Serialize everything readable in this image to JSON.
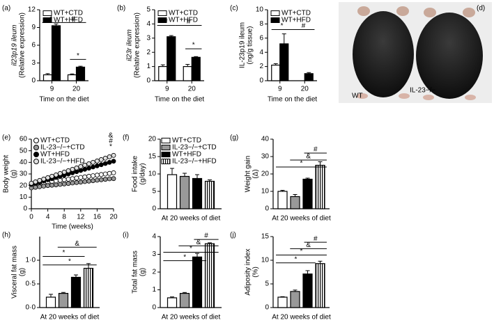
{
  "chart_data": [
    {
      "type": "bar",
      "label": "(a)",
      "ylabel": [
        "il23p19 ileum",
        "(Relative expression)"
      ],
      "xlabel": "Time on the diet",
      "categories": [
        "9",
        "20"
      ],
      "ylim": [
        0,
        12
      ],
      "yticks": [
        0,
        3,
        6,
        9,
        12
      ],
      "series": [
        {
          "name": "WT+CTD",
          "color": "#ffffff",
          "values": [
            1.0,
            1.0
          ],
          "errors": [
            0.2,
            0.15
          ]
        },
        {
          "name": "WT+HFD",
          "color": "#000000",
          "values": [
            9.3,
            2.3
          ],
          "errors": [
            0.3,
            0.15
          ]
        }
      ],
      "annotations": [
        "*",
        "#",
        "*"
      ]
    },
    {
      "type": "bar",
      "label": "(b)",
      "ylabel": [
        "il23r ileum",
        "(Relative expression)"
      ],
      "xlabel": "Time on the diet",
      "categories": [
        "9",
        "20"
      ],
      "ylim": [
        0,
        5
      ],
      "yticks": [
        0,
        1,
        2,
        3,
        4,
        5
      ],
      "series": [
        {
          "name": "WT+CTD",
          "color": "#ffffff",
          "values": [
            1.0,
            1.0
          ],
          "errors": [
            0.12,
            0.15
          ]
        },
        {
          "name": "WT+HFD",
          "color": "#000000",
          "values": [
            3.1,
            1.65
          ],
          "errors": [
            0.08,
            0.05
          ]
        }
      ],
      "annotations": [
        "*",
        "#",
        "*"
      ]
    },
    {
      "type": "bar",
      "label": "(c)",
      "ylabel": [
        "IL-23p19 ileum",
        "(ng/g tissue)"
      ],
      "xlabel": "Time on the diet",
      "categories": [
        "9",
        "20"
      ],
      "ylim": [
        0,
        10
      ],
      "yticks": [
        0,
        2,
        4,
        6,
        8,
        10
      ],
      "series": [
        {
          "name": "WT+CTD",
          "color": "#ffffff",
          "values": [
            2.2,
            null
          ],
          "errors": [
            0.2,
            null
          ]
        },
        {
          "name": "WT+HFD",
          "color": "#000000",
          "values": [
            5.2,
            1.0
          ],
          "errors": [
            1.4,
            0.15
          ]
        }
      ],
      "annotations": [
        "*",
        "#"
      ]
    },
    {
      "type": "image",
      "label": "(d)",
      "texts": [
        "WT",
        "IL-23−/−"
      ]
    },
    {
      "type": "line",
      "label": "(e)",
      "ylabel": [
        "Body weight",
        "(g)"
      ],
      "xlabel": "Time (weeks)",
      "x": [
        0,
        1,
        2,
        3,
        4,
        5,
        6,
        7,
        8,
        9,
        10,
        11,
        12,
        13,
        14,
        15,
        16,
        17,
        18,
        19,
        20
      ],
      "xlim": [
        0,
        20
      ],
      "xticks": [
        0,
        4,
        8,
        12,
        16,
        20
      ],
      "ylim": [
        0,
        60
      ],
      "yticks": [
        0,
        10,
        20,
        30,
        40,
        50,
        60
      ],
      "series": [
        {
          "name": "WT+CTD",
          "color": "#ffffff",
          "values": [
            21,
            21.5,
            22,
            22.5,
            23,
            23.5,
            24,
            24.5,
            25,
            25.5,
            26,
            26.5,
            27,
            27.5,
            28,
            28.5,
            29,
            29.5,
            30,
            30.5,
            31
          ]
        },
        {
          "name": "IL-23−/−+CTD",
          "color": "#999999",
          "values": [
            18,
            18.5,
            19,
            19.5,
            20,
            20.3,
            20.6,
            21,
            21.4,
            21.8,
            22.2,
            22.6,
            23,
            23.4,
            23.8,
            24.2,
            24.6,
            25,
            25.4,
            25.8,
            26
          ]
        },
        {
          "name": "WT+HFD",
          "color": "#000000",
          "values": [
            21,
            22,
            23,
            24,
            25,
            26,
            27,
            28,
            29,
            30,
            31,
            32,
            33,
            34,
            35,
            36,
            37,
            38,
            39,
            40,
            41
          ]
        },
        {
          "name": "IL-23−/−+HFD",
          "color": "#e0e0e0",
          "values": [
            22,
            23.2,
            24.4,
            25.6,
            26.8,
            28,
            29.2,
            30.4,
            31.6,
            32.8,
            34,
            35.2,
            36.4,
            37.6,
            38.8,
            40,
            41.2,
            42.4,
            43.6,
            44.8,
            46
          ]
        }
      ],
      "annotations": [
        "&",
        "#",
        "*"
      ]
    },
    {
      "type": "bar",
      "label": "(f)",
      "ylabel": [
        "Food intake",
        "(g/day)"
      ],
      "categories": [
        "At 20 weeks of diet"
      ],
      "ylim": [
        0,
        20
      ],
      "yticks": [
        0,
        5,
        10,
        15,
        20
      ],
      "legend": true,
      "series": [
        {
          "name": "WT+CTD",
          "color": "#ffffff",
          "values": [
            9.8
          ],
          "errors": [
            1.8
          ]
        },
        {
          "name": "IL-23−/−+CTD",
          "color": "#999999",
          "values": [
            9.3
          ],
          "errors": [
            0.9
          ]
        },
        {
          "name": "WT+HFD",
          "color": "#000000",
          "values": [
            8.7
          ],
          "errors": [
            1.1
          ]
        },
        {
          "name": "IL-23−/−+HFD",
          "color": "stripes",
          "values": [
            7.9
          ],
          "errors": [
            0.4
          ]
        }
      ],
      "annotations": []
    },
    {
      "type": "bar",
      "label": "(g)",
      "ylabel": [
        "Weight gain",
        "(Δ)"
      ],
      "categories": [
        "At 20 weeks of diet"
      ],
      "ylim": [
        0,
        40
      ],
      "yticks": [
        0,
        10,
        20,
        30,
        40
      ],
      "series": [
        {
          "name": "WT+CTD",
          "color": "#ffffff",
          "values": [
            10
          ],
          "errors": [
            0.6
          ]
        },
        {
          "name": "IL-23−/−+CTD",
          "color": "#999999",
          "values": [
            7
          ],
          "errors": [
            1.2
          ]
        },
        {
          "name": "WT+HFD",
          "color": "#000000",
          "values": [
            17
          ],
          "errors": [
            0.6
          ]
        },
        {
          "name": "IL-23−/−+HFD",
          "color": "stripes",
          "values": [
            25
          ],
          "errors": [
            2
          ]
        }
      ],
      "annotations": [
        "#",
        "&",
        "*"
      ]
    },
    {
      "type": "bar",
      "label": "(h)",
      "ylabel": [
        "Visceral fat mass",
        "(g)"
      ],
      "categories": [
        "At 20 weeks of diet"
      ],
      "ylim": [
        0,
        1.5
      ],
      "yticks": [
        {
          "value": 0,
          "label": "0·0"
        },
        {
          "value": 0.5,
          "label": "0·5"
        },
        {
          "value": 1,
          "label": "1·0"
        }
      ],
      "series": [
        {
          "name": "WT+CTD",
          "color": "#ffffff",
          "values": [
            0.22
          ],
          "errors": [
            0.06
          ]
        },
        {
          "name": "IL-23−/−+CTD",
          "color": "#999999",
          "values": [
            0.3
          ],
          "errors": [
            0.02
          ]
        },
        {
          "name": "WT+HFD",
          "color": "#000000",
          "values": [
            0.64
          ],
          "errors": [
            0.05
          ]
        },
        {
          "name": "IL-23−/−+HFD",
          "color": "stripes",
          "values": [
            0.83
          ],
          "errors": [
            0.1
          ]
        }
      ],
      "annotations": [
        "&",
        "*",
        "*"
      ]
    },
    {
      "type": "bar",
      "label": "(i)",
      "ylabel": [
        "Total fat mass",
        "(g)"
      ],
      "categories": [
        "At 20 weeks of diet"
      ],
      "ylim": [
        0,
        4
      ],
      "yticks": [
        0,
        1,
        2,
        3,
        4
      ],
      "series": [
        {
          "name": "WT+CTD",
          "color": "#ffffff",
          "values": [
            0.55
          ],
          "errors": [
            0.05
          ]
        },
        {
          "name": "IL-23−/−+CTD",
          "color": "#999999",
          "values": [
            0.8
          ],
          "errors": [
            0.05
          ]
        },
        {
          "name": "WT+HFD",
          "color": "#000000",
          "values": [
            2.85
          ],
          "errors": [
            0.2
          ]
        },
        {
          "name": "IL-23−/−+HFD",
          "color": "stripes",
          "values": [
            3.6
          ],
          "errors": [
            0.05
          ]
        }
      ],
      "annotations": [
        "#",
        "&",
        "*",
        "*"
      ]
    },
    {
      "type": "bar",
      "label": "(j)",
      "ylabel": [
        "Adiposity index",
        "(%)"
      ],
      "categories": [
        "At 20 weeks of diet"
      ],
      "ylim": [
        0,
        15
      ],
      "yticks": [
        0,
        5,
        10,
        15
      ],
      "series": [
        {
          "name": "WT+CTD",
          "color": "#ffffff",
          "values": [
            2.2
          ],
          "errors": [
            0.1
          ]
        },
        {
          "name": "IL-23−/−+CTD",
          "color": "#999999",
          "values": [
            3.4
          ],
          "errors": [
            0.3
          ]
        },
        {
          "name": "WT+HFD",
          "color": "#000000",
          "values": [
            7.1
          ],
          "errors": [
            0.7
          ]
        },
        {
          "name": "IL-23−/−+HFD",
          "color": "stripes",
          "values": [
            9.3
          ],
          "errors": [
            0.5
          ]
        }
      ],
      "annotations": [
        "#",
        "&",
        "*",
        "*"
      ]
    }
  ]
}
